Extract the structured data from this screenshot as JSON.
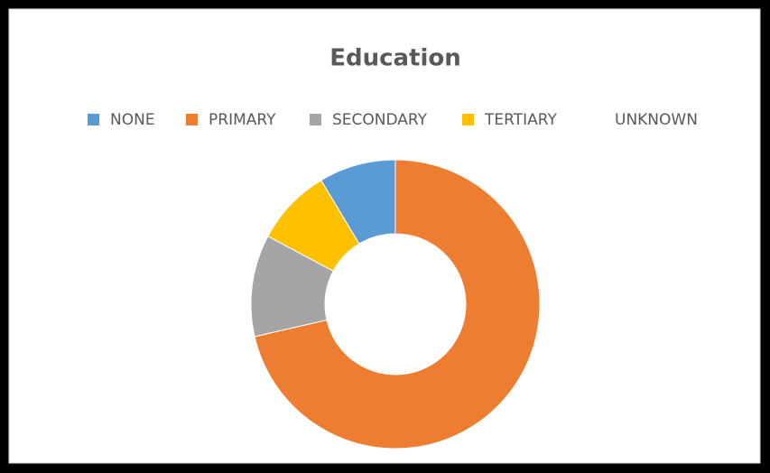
{
  "chart_data": {
    "type": "donut",
    "title": "Education",
    "categories": [
      "NONE",
      "PRIMARY",
      "SECONDARY",
      "TERTIARY",
      "UNKNOWN"
    ],
    "values": [
      8.6,
      71.4,
      11.4,
      8.6,
      0
    ],
    "colors": [
      "#5b9bd5",
      "#ed7d31",
      "#a5a5a5",
      "#ffc000",
      null
    ],
    "legend": "top"
  }
}
